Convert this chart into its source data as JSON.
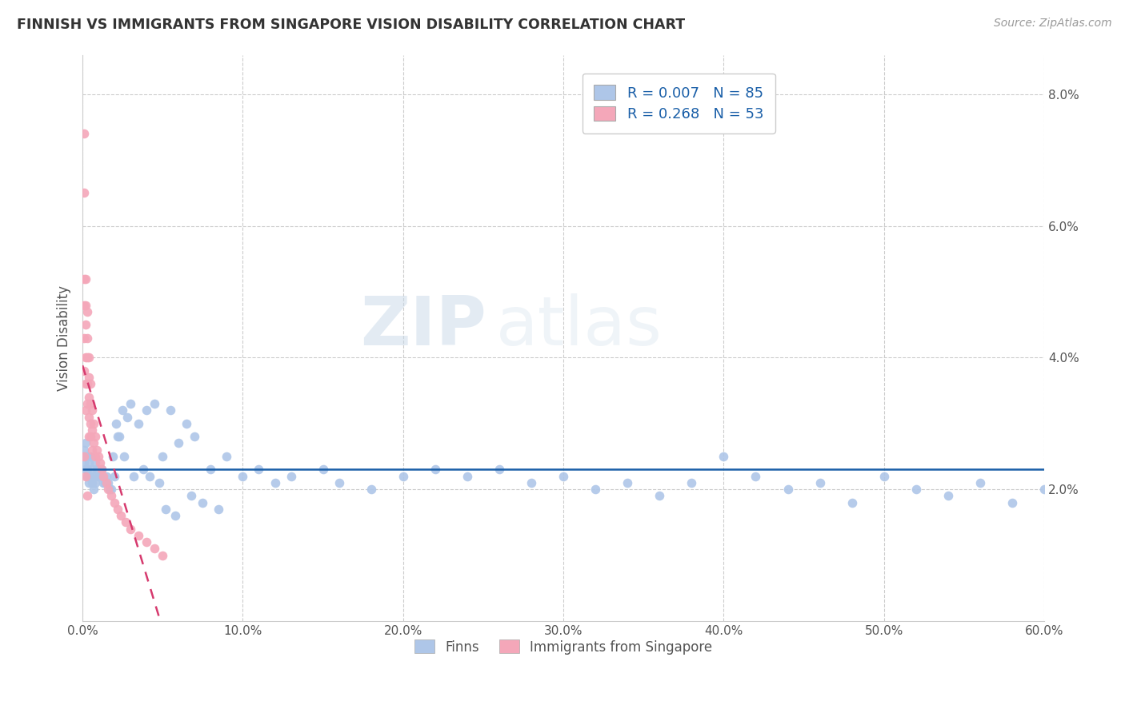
{
  "title": "FINNISH VS IMMIGRANTS FROM SINGAPORE VISION DISABILITY CORRELATION CHART",
  "source_text": "Source: ZipAtlas.com",
  "ylabel": "Vision Disability",
  "legend_bottom": [
    "Finns",
    "Immigrants from Singapore"
  ],
  "r_finns": 0.007,
  "n_finns": 85,
  "r_singapore": 0.268,
  "n_singapore": 53,
  "xmin": 0.0,
  "xmax": 0.6,
  "ymin": 0.0,
  "ymax": 0.086,
  "yticks": [
    0.02,
    0.04,
    0.06,
    0.08
  ],
  "ytick_labels": [
    "2.0%",
    "4.0%",
    "6.0%",
    "8.0%"
  ],
  "xticks": [
    0.0,
    0.1,
    0.2,
    0.3,
    0.4,
    0.5,
    0.6
  ],
  "xtick_labels": [
    "0.0%",
    "10.0%",
    "20.0%",
    "30.0%",
    "40.0%",
    "50.0%",
    "60.0%"
  ],
  "color_finns": "#aec6e8",
  "color_singapore": "#f4a7b9",
  "color_trendline_finns": "#1a5fa8",
  "color_trendline_singapore": "#d63a6e",
  "watermark_zip": "ZIP",
  "watermark_atlas": "atlas",
  "finns_x": [
    0.001,
    0.001,
    0.002,
    0.002,
    0.002,
    0.003,
    0.003,
    0.003,
    0.004,
    0.004,
    0.004,
    0.005,
    0.005,
    0.006,
    0.006,
    0.007,
    0.007,
    0.008,
    0.008,
    0.009,
    0.01,
    0.011,
    0.012,
    0.013,
    0.015,
    0.016,
    0.018,
    0.02,
    0.022,
    0.025,
    0.028,
    0.03,
    0.035,
    0.04,
    0.045,
    0.05,
    0.055,
    0.06,
    0.065,
    0.07,
    0.08,
    0.09,
    0.1,
    0.11,
    0.12,
    0.13,
    0.15,
    0.16,
    0.18,
    0.2,
    0.22,
    0.24,
    0.26,
    0.28,
    0.3,
    0.32,
    0.34,
    0.36,
    0.38,
    0.4,
    0.42,
    0.44,
    0.46,
    0.48,
    0.5,
    0.52,
    0.54,
    0.56,
    0.58,
    0.6,
    0.014,
    0.017,
    0.019,
    0.021,
    0.023,
    0.026,
    0.032,
    0.038,
    0.042,
    0.048,
    0.052,
    0.058,
    0.068,
    0.075,
    0.085
  ],
  "finns_y": [
    0.026,
    0.024,
    0.027,
    0.025,
    0.023,
    0.025,
    0.023,
    0.022,
    0.024,
    0.022,
    0.021,
    0.025,
    0.022,
    0.023,
    0.021,
    0.022,
    0.02,
    0.024,
    0.021,
    0.023,
    0.022,
    0.022,
    0.023,
    0.021,
    0.022,
    0.021,
    0.02,
    0.022,
    0.028,
    0.032,
    0.031,
    0.033,
    0.03,
    0.032,
    0.033,
    0.025,
    0.032,
    0.027,
    0.03,
    0.028,
    0.023,
    0.025,
    0.022,
    0.023,
    0.021,
    0.022,
    0.023,
    0.021,
    0.02,
    0.022,
    0.023,
    0.022,
    0.023,
    0.021,
    0.022,
    0.02,
    0.021,
    0.019,
    0.021,
    0.025,
    0.022,
    0.02,
    0.021,
    0.018,
    0.022,
    0.02,
    0.019,
    0.021,
    0.018,
    0.02,
    0.021,
    0.02,
    0.025,
    0.03,
    0.028,
    0.025,
    0.022,
    0.023,
    0.022,
    0.021,
    0.017,
    0.016,
    0.019,
    0.018,
    0.017
  ],
  "singapore_x": [
    0.001,
    0.001,
    0.001,
    0.001,
    0.001,
    0.001,
    0.002,
    0.002,
    0.002,
    0.002,
    0.002,
    0.002,
    0.003,
    0.003,
    0.003,
    0.003,
    0.003,
    0.004,
    0.004,
    0.004,
    0.004,
    0.004,
    0.005,
    0.005,
    0.005,
    0.005,
    0.006,
    0.006,
    0.006,
    0.007,
    0.007,
    0.008,
    0.008,
    0.009,
    0.01,
    0.011,
    0.012,
    0.013,
    0.015,
    0.016,
    0.018,
    0.02,
    0.022,
    0.024,
    0.027,
    0.03,
    0.035,
    0.04,
    0.045,
    0.05,
    0.001,
    0.002,
    0.003
  ],
  "singapore_y": [
    0.074,
    0.065,
    0.052,
    0.048,
    0.043,
    0.038,
    0.052,
    0.048,
    0.045,
    0.04,
    0.036,
    0.032,
    0.047,
    0.043,
    0.04,
    0.036,
    0.033,
    0.04,
    0.037,
    0.034,
    0.031,
    0.028,
    0.036,
    0.033,
    0.03,
    0.028,
    0.032,
    0.029,
    0.026,
    0.03,
    0.027,
    0.028,
    0.025,
    0.026,
    0.025,
    0.024,
    0.023,
    0.022,
    0.021,
    0.02,
    0.019,
    0.018,
    0.017,
    0.016,
    0.015,
    0.014,
    0.013,
    0.012,
    0.011,
    0.01,
    0.025,
    0.022,
    0.019
  ]
}
